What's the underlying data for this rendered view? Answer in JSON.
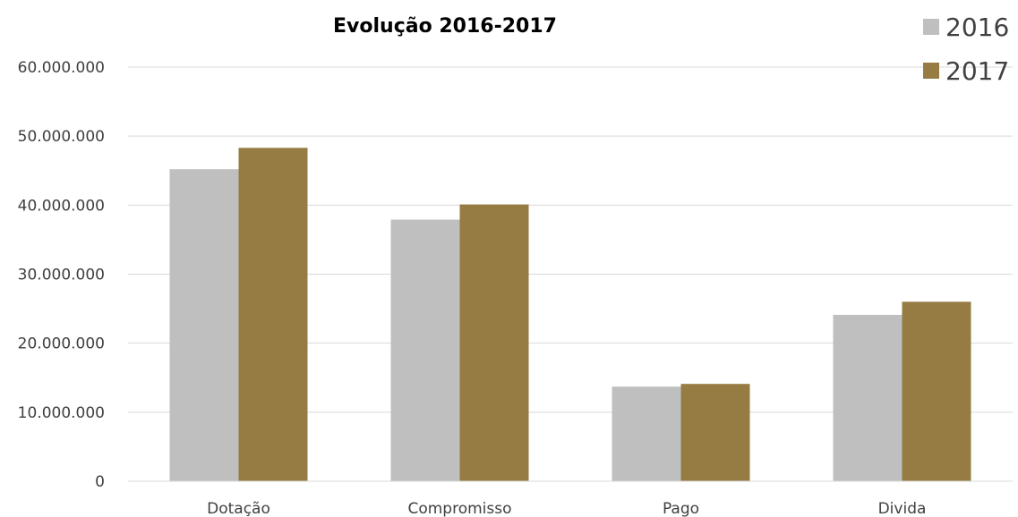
{
  "chart_data": {
    "type": "bar",
    "title": "Evolução 2016-2017",
    "categories": [
      "Dotação",
      "Compromisso",
      "Pago",
      "Divida"
    ],
    "series": [
      {
        "name": "2016",
        "color": "#bfbfbf",
        "values": [
          45200000,
          37900000,
          13700000,
          24100000
        ]
      },
      {
        "name": "2017",
        "color": "#967c43",
        "values": [
          48300000,
          40100000,
          14100000,
          26000000
        ]
      }
    ],
    "ylim": [
      0,
      60000000
    ],
    "yticks": [
      0,
      10000000,
      20000000,
      30000000,
      40000000,
      50000000,
      60000000
    ],
    "ytick_labels": [
      "0",
      "10.000.000",
      "20.000.000",
      "30.000.000",
      "40.000.000",
      "50.000.000",
      "60.000.000"
    ],
    "grid": true,
    "legend_position": "top-right"
  }
}
